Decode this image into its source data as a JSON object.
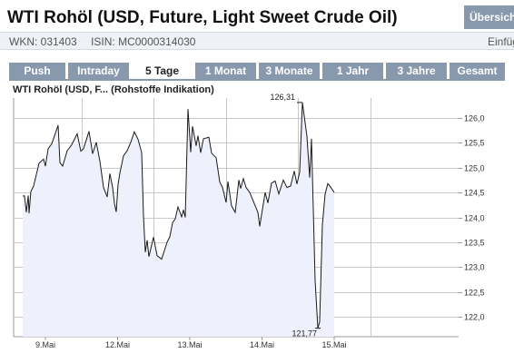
{
  "header": {
    "title": "WTI Rohöl (USD, Future, Light Sweet Crude Oil)",
    "overview_button": "Übersicht",
    "wkn": "WKN: 031403",
    "isin": "ISIN: MC0000314030",
    "insert_link": "Einfügen"
  },
  "tabs": [
    {
      "label": "Push",
      "active": false
    },
    {
      "label": "Intraday",
      "active": false
    },
    {
      "label": "5 Tage",
      "active": true
    },
    {
      "label": "1 Monat",
      "active": false
    },
    {
      "label": "3 Monate",
      "active": false
    },
    {
      "label": "1 Jahr",
      "active": false
    },
    {
      "label": "3 Jahre",
      "active": false
    },
    {
      "label": "Gesamt",
      "active": false
    }
  ],
  "colors": {
    "tab": "#8898ad",
    "line": "#1a1a1a",
    "fill": "#eef0fb",
    "grid": "#c8c8c8"
  },
  "chart_data": {
    "type": "area",
    "title": "WTI Rohöl (USD, F... (Rohstoffe Indikation)",
    "x_tick_labels": [
      "9.Mai",
      "12.Mai",
      "13.Mai",
      "14.Mai",
      "15.Mai"
    ],
    "y_ticks": [
      "126,0",
      "125,5",
      "125,0",
      "124,5",
      "124,0",
      "123,5",
      "123,0",
      "122,5",
      "122,0"
    ],
    "ylim": [
      121.6,
      126.4
    ],
    "y_tick_values": [
      126.0,
      125.5,
      125.0,
      124.5,
      124.0,
      123.5,
      123.0,
      122.5,
      122.0
    ],
    "x_day_index": [
      0,
      1,
      2,
      3,
      4
    ],
    "xlim": [
      -0.37,
      4.98
    ],
    "annotations": [
      {
        "label": "126,31",
        "value": 126.31,
        "kind": "max"
      },
      {
        "label": "121,77",
        "value": 121.77,
        "kind": "min"
      }
    ],
    "series": [
      {
        "values": [
          124.43,
          124.43,
          124.1,
          124.44,
          124.08,
          124.52,
          124.63,
          125.09,
          125.17,
          125.03,
          125.38,
          125.48,
          125.85,
          125.1,
          125.03,
          125.34,
          125.46,
          125.68,
          125.33,
          125.38,
          125.73,
          125.28,
          125.51,
          125.13,
          124.6,
          124.41,
          124.88,
          124.6,
          124.28,
          124.11,
          124.66,
          124.89,
          125.24,
          125.34,
          125.51,
          125.72,
          125.57,
          125.3,
          124.03,
          123.3,
          123.54,
          123.21,
          123.6,
          123.23,
          123.16,
          123.5,
          123.61,
          123.89,
          123.97,
          124.21,
          124.01,
          124.15,
          124.0,
          126.18,
          125.31,
          125.83,
          125.44,
          125.64,
          125.3,
          125.58,
          125.61,
          125.29,
          125.2,
          124.71,
          124.6,
          124.3,
          124.72,
          124.23,
          124.1,
          124.75,
          124.58,
          124.78,
          124.6,
          124.5,
          124.1,
          123.82,
          124.5,
          124.29,
          124.69,
          124.73,
          124.47,
          124.75,
          124.6,
          124.63,
          124.93,
          124.67,
          124.91,
          126.31,
          125.63,
          124.8,
          125.58,
          122.73,
          121.77,
          121.9,
          123.85,
          124.47,
          124.68,
          124.61,
          124.5
        ],
        "x": [
          -0.314,
          -0.289,
          -0.264,
          -0.238,
          -0.226,
          -0.201,
          -0.163,
          -0.088,
          -0.025,
          0.0,
          0.038,
          0.088,
          0.176,
          0.201,
          0.239,
          0.302,
          0.365,
          0.44,
          0.49,
          0.528,
          0.604,
          0.654,
          0.704,
          0.755,
          0.805,
          0.855,
          0.893,
          0.931,
          0.956,
          0.981,
          1.006,
          1.032,
          1.082,
          1.132,
          1.182,
          1.232,
          1.283,
          1.333,
          1.358,
          1.384,
          1.409,
          1.434,
          1.497,
          1.547,
          1.61,
          1.686,
          1.723,
          1.761,
          1.799,
          1.837,
          1.887,
          1.912,
          1.937,
          1.975,
          2.013,
          2.038,
          2.088,
          2.113,
          2.151,
          2.189,
          2.264,
          2.302,
          2.365,
          2.415,
          2.453,
          2.503,
          2.528,
          2.579,
          2.629,
          2.679,
          2.704,
          2.742,
          2.78,
          2.83,
          2.943,
          2.969,
          3.044,
          3.082,
          3.132,
          3.182,
          3.233,
          3.296,
          3.346,
          3.396,
          3.447,
          3.484,
          3.522,
          3.56,
          3.623,
          3.66,
          3.686,
          3.736,
          3.774,
          3.799,
          3.836,
          3.874,
          3.912,
          3.95,
          4.0
        ]
      }
    ]
  }
}
